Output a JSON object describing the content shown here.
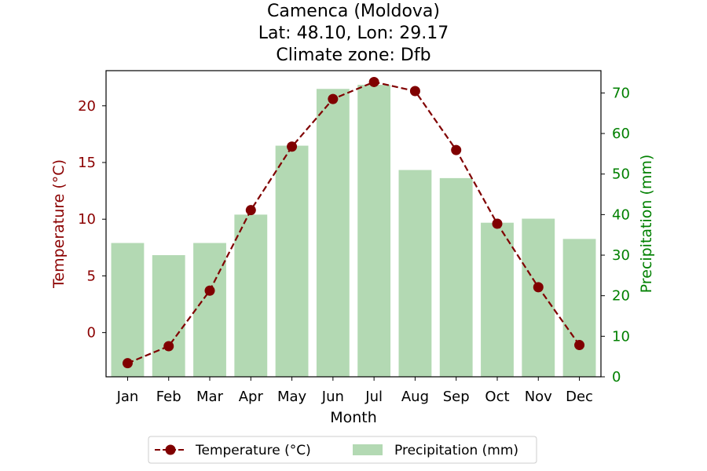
{
  "chart_data": {
    "type": "bar",
    "title_lines": [
      "Camenca (Moldova)",
      "Lat: 48.10, Lon: 29.17",
      "Climate zone: Dfb"
    ],
    "categories": [
      "Jan",
      "Feb",
      "Mar",
      "Apr",
      "May",
      "Jun",
      "Jul",
      "Aug",
      "Sep",
      "Oct",
      "Nov",
      "Dec"
    ],
    "xlabel": "Month",
    "ylabel_left": "Temperature (°C)",
    "ylabel_right": "Precipitation (mm)",
    "ylim_left": [
      -3.9,
      23.1
    ],
    "ylim_right": [
      0,
      75.5
    ],
    "yticks_left": [
      0,
      5,
      10,
      15,
      20
    ],
    "yticks_right": [
      0,
      10,
      20,
      30,
      40,
      50,
      60,
      70
    ],
    "grid": false,
    "legend_position": "bottom-center",
    "colors": {
      "temperature": "#800000",
      "precipitation": "#b3d9b3",
      "left_axis_text": "#8b0000",
      "right_axis_text": "#008000"
    },
    "series": [
      {
        "name": "Temperature (°C)",
        "axis": "left",
        "kind": "line",
        "values": [
          -2.7,
          -1.2,
          3.7,
          10.8,
          16.4,
          20.6,
          22.1,
          21.3,
          16.1,
          9.6,
          4.0,
          -1.1
        ]
      },
      {
        "name": "Precipitation (mm)",
        "axis": "right",
        "kind": "bar",
        "values": [
          33,
          30,
          33,
          40,
          57,
          71,
          72,
          51,
          49,
          38,
          39,
          34
        ]
      }
    ]
  }
}
